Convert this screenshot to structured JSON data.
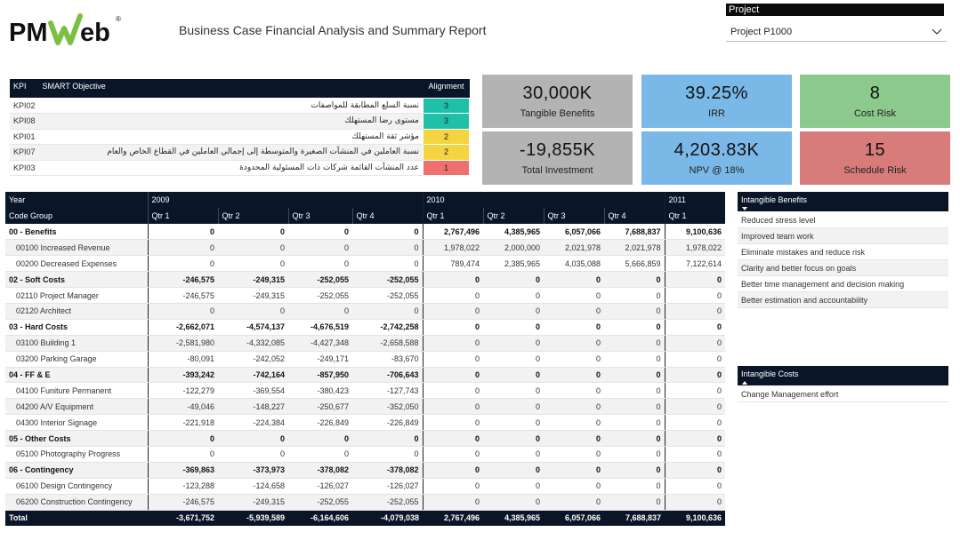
{
  "header": {
    "logo_text": "PMWeb",
    "report_title": "Business Case Financial Analysis and Summary Report"
  },
  "project_filter": {
    "label": "Project",
    "selected": "Project P1000"
  },
  "kpi_table": {
    "headers": [
      "KPI",
      "SMART Objective",
      "Alignment"
    ],
    "rows": [
      {
        "code": "KPI02",
        "objective": "نسبة السلع المطابقة للمواصفات",
        "alignment": "3",
        "color": "#20c0a8"
      },
      {
        "code": "KPI08",
        "objective": "مستوى رضا المستهلك",
        "alignment": "3",
        "color": "#20c0a8"
      },
      {
        "code": "KPI01",
        "objective": "مؤشر ثقة المستهلك",
        "alignment": "2",
        "color": "#f5d442"
      },
      {
        "code": "KPI07",
        "objective": "نسبة العاملين في المنشآت الصغيرة والمتوسطة إلى إجمالي العاملين في القطاع الخاص والعام",
        "alignment": "2",
        "color": "#f5d442"
      },
      {
        "code": "KPI03",
        "objective": "عدد المنشآت القائمة شركات ذات المسئولية المحدودة",
        "alignment": "1",
        "color": "#f07070"
      }
    ]
  },
  "cards": {
    "tangible_benefits": {
      "value": "30,000K",
      "label": "Tangible Benefits",
      "color": "#b3b3b3"
    },
    "irr": {
      "value": "39.25%",
      "label": "IRR",
      "color": "#7ab8e8"
    },
    "cost_risk": {
      "value": "8",
      "label": "Cost Risk",
      "color": "#8cc98c"
    },
    "total_investment": {
      "value": "-19,855K",
      "label": "Total Investment",
      "color": "#b3b3b3"
    },
    "npv": {
      "value": "4,203.83K",
      "label": "NPV @ 18%",
      "color": "#7ab8e8"
    },
    "schedule_risk": {
      "value": "15",
      "label": "Schedule Risk",
      "color": "#d87b7b"
    }
  },
  "financial_table": {
    "year_label": "Year",
    "code_group_label": "Code Group",
    "years": [
      "2009",
      "2010",
      "2011"
    ],
    "quarters": [
      "Qtr 1",
      "Qtr 2",
      "Qtr 3",
      "Qtr 4",
      "Qtr 1",
      "Qtr 2",
      "Qtr 3",
      "Qtr 4",
      "Qtr 1"
    ],
    "rows": [
      {
        "name": "00 - Benefits",
        "group": true,
        "values": [
          "0",
          "0",
          "0",
          "0",
          "2,767,496",
          "4,385,965",
          "6,057,066",
          "7,688,837",
          "9,100,636"
        ]
      },
      {
        "name": "00100 Increased Revenue",
        "group": false,
        "values": [
          "0",
          "0",
          "0",
          "0",
          "1,978,022",
          "2,000,000",
          "2,021,978",
          "2,021,978",
          "1,978,022"
        ]
      },
      {
        "name": "00200 Decreased Expenses",
        "group": false,
        "values": [
          "0",
          "0",
          "0",
          "0",
          "789,474",
          "2,385,965",
          "4,035,088",
          "5,666,859",
          "7,122,614"
        ]
      },
      {
        "name": "02 - Soft Costs",
        "group": true,
        "values": [
          "-246,575",
          "-249,315",
          "-252,055",
          "-252,055",
          "0",
          "0",
          "0",
          "0",
          "0"
        ]
      },
      {
        "name": "02110 Project Manager",
        "group": false,
        "values": [
          "-246,575",
          "-249,315",
          "-252,055",
          "-252,055",
          "0",
          "0",
          "0",
          "0",
          "0"
        ]
      },
      {
        "name": "02120 Architect",
        "group": false,
        "values": [
          "0",
          "0",
          "0",
          "0",
          "0",
          "0",
          "0",
          "0",
          "0"
        ]
      },
      {
        "name": "03 - Hard Costs",
        "group": true,
        "values": [
          "-2,662,071",
          "-4,574,137",
          "-4,676,519",
          "-2,742,258",
          "0",
          "0",
          "0",
          "0",
          "0"
        ]
      },
      {
        "name": "03100 Building 1",
        "group": false,
        "values": [
          "-2,581,980",
          "-4,332,085",
          "-4,427,348",
          "-2,658,588",
          "0",
          "0",
          "0",
          "0",
          "0"
        ]
      },
      {
        "name": "03200 Parking Garage",
        "group": false,
        "values": [
          "-80,091",
          "-242,052",
          "-249,171",
          "-83,670",
          "0",
          "0",
          "0",
          "0",
          "0"
        ]
      },
      {
        "name": "04 - FF & E",
        "group": true,
        "values": [
          "-393,242",
          "-742,164",
          "-857,950",
          "-706,643",
          "0",
          "0",
          "0",
          "0",
          "0"
        ]
      },
      {
        "name": "04100 Funiture Permanent",
        "group": false,
        "values": [
          "-122,279",
          "-369,554",
          "-380,423",
          "-127,743",
          "0",
          "0",
          "0",
          "0",
          "0"
        ]
      },
      {
        "name": "04200 A/V Equipment",
        "group": false,
        "values": [
          "-49,046",
          "-148,227",
          "-250,677",
          "-352,050",
          "0",
          "0",
          "0",
          "0",
          "0"
        ]
      },
      {
        "name": "04300 Interior Signage",
        "group": false,
        "values": [
          "-221,918",
          "-224,384",
          "-226,849",
          "-226,849",
          "0",
          "0",
          "0",
          "0",
          "0"
        ]
      },
      {
        "name": "05 - Other Costs",
        "group": true,
        "values": [
          "0",
          "0",
          "0",
          "0",
          "0",
          "0",
          "0",
          "0",
          "0"
        ]
      },
      {
        "name": "05100 Photography Progress",
        "group": false,
        "values": [
          "0",
          "0",
          "0",
          "0",
          "0",
          "0",
          "0",
          "0",
          "0"
        ]
      },
      {
        "name": "06 - Contingency",
        "group": true,
        "values": [
          "-369,863",
          "-373,973",
          "-378,082",
          "-378,082",
          "0",
          "0",
          "0",
          "0",
          "0"
        ]
      },
      {
        "name": "06100 Design Contingency",
        "group": false,
        "values": [
          "-123,288",
          "-124,658",
          "-126,027",
          "-126,027",
          "0",
          "0",
          "0",
          "0",
          "0"
        ]
      },
      {
        "name": "06200 Construction Contingency",
        "group": false,
        "values": [
          "-246,575",
          "-249,315",
          "-252,055",
          "-252,055",
          "0",
          "0",
          "0",
          "0",
          "0"
        ]
      }
    ],
    "total": {
      "name": "Total",
      "values": [
        "-3,671,752",
        "-5,939,589",
        "-6,164,606",
        "-4,079,038",
        "2,767,496",
        "4,385,965",
        "6,057,066",
        "7,688,837",
        "9,100,636"
      ]
    }
  },
  "intangible_benefits": {
    "title": "Intangible Benefits",
    "items": [
      "Reduced stress level",
      "Improved team work",
      "Eliminate mistakes and reduce risk",
      "Clarity and better focus on goals",
      "Better time management and decision making",
      "Better estimation and accountability"
    ]
  },
  "intangible_costs": {
    "title": "Intangible Costs",
    "items": [
      "Change Management effort"
    ]
  }
}
